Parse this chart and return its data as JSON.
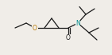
{
  "bg_color": "#f0ede8",
  "line_color": "#1a1a1a",
  "atom_colors": {
    "O_ether": "#b87800",
    "O_carbonyl": "#1a1a1a",
    "N": "#008b8b"
  },
  "figsize": [
    1.41,
    0.69
  ],
  "dpi": 100
}
